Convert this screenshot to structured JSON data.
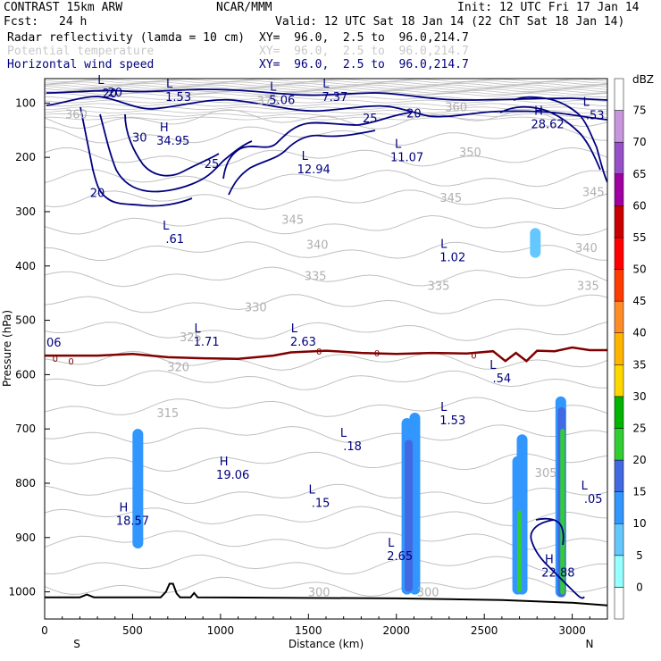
{
  "header": {
    "model": "CONTRAST 15km ARW",
    "org": "NCAR/MMM",
    "init": "Init: 12 UTC Fri 17 Jan 14",
    "fcst_label": "Fcst:",
    "fcst_value": "24 h",
    "valid": "Valid: 12 UTC Sat 18 Jan 14 (22 ChT Sat 18 Jan 14)",
    "fields": [
      {
        "name": "Radar reflectivity (lamda = 10 cm)",
        "xy": "XY=  96.0,  2.5 to  96.0,214.7",
        "color": "#000000"
      },
      {
        "name": "Potential temperature",
        "xy": "XY=  96.0,  2.5 to  96.0,214.7",
        "color": "#c8c8c8"
      },
      {
        "name": "Horizontal wind speed",
        "xy": "XY=  96.0,  2.5 to  96.0,214.7",
        "color": "#000080"
      }
    ]
  },
  "chart_data": {
    "type": "contour-cross-section",
    "xlabel": "Distance (km)",
    "ylabel": "Pressure (hPa)",
    "xlim": [
      0,
      3200
    ],
    "ylim": [
      1050,
      55
    ],
    "x_ticks": [
      0,
      500,
      1000,
      1500,
      2000,
      2500,
      3000
    ],
    "y_ticks": [
      100,
      200,
      300,
      400,
      500,
      600,
      700,
      800,
      900,
      1000
    ],
    "x_end_labels": {
      "left": "S",
      "right": "N"
    },
    "colorbar": {
      "unit": "dBZ",
      "levels": [
        0,
        5,
        10,
        15,
        20,
        25,
        30,
        35,
        40,
        45,
        50,
        55,
        60,
        65,
        70,
        75
      ],
      "colors": [
        "#ffffff",
        "#96ffff",
        "#64c8ff",
        "#3296ff",
        "#4169e1",
        "#32cd32",
        "#00b400",
        "#ffd700",
        "#ffb400",
        "#ff8c28",
        "#ff3c00",
        "#ff0000",
        "#c80000",
        "#a000a0",
        "#9650c8",
        "#c896dc",
        "#ffffff"
      ]
    },
    "theta_labels": [
      {
        "x": 1560,
        "p": 1000,
        "text": "300"
      },
      {
        "x": 2180,
        "p": 1000,
        "text": "300"
      },
      {
        "x": 2850,
        "p": 780,
        "text": "305"
      },
      {
        "x": 700,
        "p": 670,
        "text": "315"
      },
      {
        "x": 760,
        "p": 585,
        "text": "320"
      },
      {
        "x": 830,
        "p": 530,
        "text": "325"
      },
      {
        "x": 1200,
        "p": 475,
        "text": "330"
      },
      {
        "x": 1540,
        "p": 418,
        "text": "335"
      },
      {
        "x": 2240,
        "p": 436,
        "text": "335"
      },
      {
        "x": 3090,
        "p": 436,
        "text": "335"
      },
      {
        "x": 1550,
        "p": 360,
        "text": "340"
      },
      {
        "x": 3080,
        "p": 366,
        "text": "340"
      },
      {
        "x": 1410,
        "p": 314,
        "text": "345"
      },
      {
        "x": 2310,
        "p": 274,
        "text": "345"
      },
      {
        "x": 3120,
        "p": 263,
        "text": "345"
      },
      {
        "x": 2420,
        "p": 190,
        "text": "350"
      },
      {
        "x": 2340,
        "p": 107,
        "text": "360"
      },
      {
        "x": 180,
        "p": 120,
        "text": "360"
      },
      {
        "x": 1270,
        "p": 95,
        "text": "375"
      }
    ],
    "wind_labels": [
      {
        "x": 400,
        "p": 80,
        "text": "20"
      },
      {
        "x": 2100,
        "p": 118,
        "text": "20"
      },
      {
        "x": 1850,
        "p": 127,
        "text": "25"
      },
      {
        "x": 950,
        "p": 211,
        "text": "25"
      },
      {
        "x": 540,
        "p": 163,
        "text": "30"
      },
      {
        "x": 300,
        "p": 265,
        "text": "20"
      }
    ],
    "extrema": [
      {
        "type": "L",
        "x": 370,
        "p": 78,
        "value": "20"
      },
      {
        "type": "L",
        "x": 760,
        "p": 85,
        "value": "1.53"
      },
      {
        "type": "L",
        "x": 1350,
        "p": 90,
        "value": "5.06"
      },
      {
        "type": "L",
        "x": 1650,
        "p": 85,
        "value": "7.37"
      },
      {
        "type": "H",
        "x": 730,
        "p": 165,
        "value": "34.95"
      },
      {
        "type": "L",
        "x": 1530,
        "p": 218,
        "value": "12.94"
      },
      {
        "type": "L",
        "x": 2060,
        "p": 196,
        "value": "11.07"
      },
      {
        "type": "H",
        "x": 2860,
        "p": 135,
        "value": "28.62"
      },
      {
        "type": "L",
        "x": 3130,
        "p": 118,
        "value": ".53"
      },
      {
        "type": "L",
        "x": 740,
        "p": 346,
        "value": ".61"
      },
      {
        "type": "L",
        "x": 2320,
        "p": 380,
        "value": "1.02"
      },
      {
        "type": "L",
        "x": 920,
        "p": 535,
        "value": "1.71"
      },
      {
        "type": "L",
        "x": 1470,
        "p": 535,
        "value": "2.63"
      },
      {
        "type": "L",
        "x": 2600,
        "p": 603,
        "value": ".54"
      },
      {
        "type": "L",
        "x": 2320,
        "p": 680,
        "value": "1.53"
      },
      {
        "type": "L",
        "x": 1750,
        "p": 728,
        "value": ".18"
      },
      {
        "type": "H",
        "x": 1070,
        "p": 780,
        "value": "19.06"
      },
      {
        "type": "L",
        "x": 1570,
        "p": 832,
        "value": ".15"
      },
      {
        "type": "H",
        "x": 500,
        "p": 865,
        "value": "18.57"
      },
      {
        "type": "L",
        "x": 3120,
        "p": 825,
        "value": ".05"
      },
      {
        "type": "L",
        "x": 2020,
        "p": 930,
        "value": "2.65"
      },
      {
        "type": "H",
        "x": 2920,
        "p": 960,
        "value": "22.88"
      }
    ],
    "left_edge_label": {
      "p": 552,
      "text": "06"
    },
    "zero_labels": [
      {
        "x": 60,
        "p": 570,
        "text": "0"
      },
      {
        "x": 150,
        "p": 575,
        "text": "0"
      },
      {
        "x": 1560,
        "p": 557,
        "text": "0"
      },
      {
        "x": 1890,
        "p": 560,
        "text": "0"
      },
      {
        "x": 2440,
        "p": 564,
        "text": "0"
      }
    ],
    "zero_isotherm": [
      [
        0,
        565
      ],
      [
        300,
        565
      ],
      [
        500,
        562
      ],
      [
        700,
        568
      ],
      [
        900,
        570
      ],
      [
        1100,
        571
      ],
      [
        1300,
        565
      ],
      [
        1400,
        559
      ],
      [
        1600,
        556
      ],
      [
        1800,
        560
      ],
      [
        2000,
        562
      ],
      [
        2200,
        560
      ],
      [
        2400,
        561
      ],
      [
        2550,
        557
      ],
      [
        2620,
        575
      ],
      [
        2680,
        560
      ],
      [
        2740,
        575
      ],
      [
        2800,
        556
      ],
      [
        2900,
        557
      ],
      [
        3000,
        550
      ],
      [
        3100,
        555
      ],
      [
        3200,
        555
      ]
    ],
    "terrain": [
      [
        0,
        1010
      ],
      [
        200,
        1010
      ],
      [
        240,
        1005
      ],
      [
        280,
        1010
      ],
      [
        660,
        1010
      ],
      [
        690,
        1000
      ],
      [
        710,
        985
      ],
      [
        730,
        985
      ],
      [
        750,
        1003
      ],
      [
        770,
        1010
      ],
      [
        830,
        1010
      ],
      [
        850,
        1002
      ],
      [
        870,
        1010
      ],
      [
        2000,
        1012
      ],
      [
        2600,
        1015
      ],
      [
        3000,
        1020
      ],
      [
        3200,
        1025
      ]
    ],
    "reflectivity_cells": [
      {
        "x": 530,
        "p_top": 700,
        "p_bottom": 920,
        "dbz": 10
      },
      {
        "x": 2060,
        "p_top": 680,
        "p_bottom": 1005,
        "dbz": 10
      },
      {
        "x": 2105,
        "p_top": 670,
        "p_bottom": 1005,
        "dbz": 10
      },
      {
        "x": 2070,
        "p_top": 720,
        "p_bottom": 1000,
        "dbz": 15
      },
      {
        "x": 2790,
        "p_top": 330,
        "p_bottom": 385,
        "dbz": 5
      },
      {
        "x": 2690,
        "p_top": 750,
        "p_bottom": 1005,
        "dbz": 10
      },
      {
        "x": 2715,
        "p_top": 710,
        "p_bottom": 1005,
        "dbz": 10
      },
      {
        "x": 2700,
        "p_top": 850,
        "p_bottom": 1000,
        "dbz": 20
      },
      {
        "x": 2935,
        "p_top": 640,
        "p_bottom": 1010,
        "dbz": 10
      },
      {
        "x": 2940,
        "p_top": 660,
        "p_bottom": 1010,
        "dbz": 15
      },
      {
        "x": 2945,
        "p_top": 700,
        "p_bottom": 1005,
        "dbz": 20
      }
    ]
  }
}
